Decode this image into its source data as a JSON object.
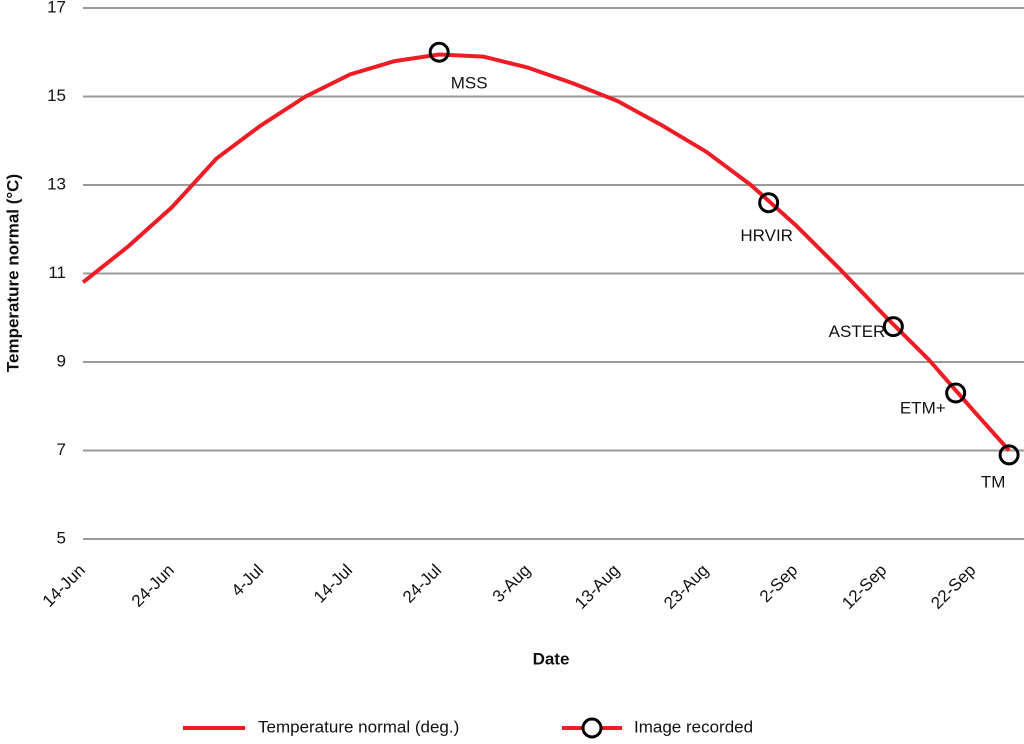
{
  "chart_data": {
    "type": "line",
    "x_label": "Date",
    "y_label": "Temperature normal (°C)",
    "xlim": [
      "14-Jun",
      "27-Sep"
    ],
    "xticks": [
      "14-Jun",
      "24-Jun",
      "4-Jul",
      "14-Jul",
      "24-Jul",
      "3-Aug",
      "13-Aug",
      "23-Aug",
      "2-Sep",
      "12-Sep",
      "22-Sep"
    ],
    "ylim": [
      5,
      17
    ],
    "yticks": [
      5,
      7,
      9,
      11,
      13,
      15,
      17
    ],
    "grid": true,
    "legend": "bottom",
    "series": [
      {
        "name": "Temperature normal (deg.)",
        "color": "#ee1c25",
        "x": [
          "14-Jun",
          "19-Jun",
          "24-Jun",
          "29-Jun",
          "4-Jul",
          "9-Jul",
          "14-Jul",
          "19-Jul",
          "24-Jul",
          "29-Jul",
          "3-Aug",
          "8-Aug",
          "13-Aug",
          "18-Aug",
          "23-Aug",
          "28-Aug",
          "2-Sep",
          "7-Sep",
          "12-Sep",
          "17-Sep",
          "22-Sep",
          "26-Sep"
        ],
        "values": [
          10.8,
          11.6,
          12.5,
          13.6,
          14.35,
          15.0,
          15.5,
          15.8,
          15.95,
          15.9,
          15.65,
          15.3,
          14.9,
          14.35,
          13.75,
          13.0,
          12.1,
          11.1,
          10.05,
          9.05,
          7.9,
          7.0
        ]
      },
      {
        "name": "Image recorded",
        "color": "#000000",
        "x": [
          "24-Jul",
          "30-Aug",
          "13-Sep",
          "20-Sep",
          "26-Sep"
        ],
        "values": [
          16.0,
          12.6,
          9.8,
          8.3,
          6.9
        ],
        "labels": [
          "MSS",
          "HRVIR",
          "ASTER",
          "ETM+",
          "TM"
        ]
      }
    ]
  }
}
